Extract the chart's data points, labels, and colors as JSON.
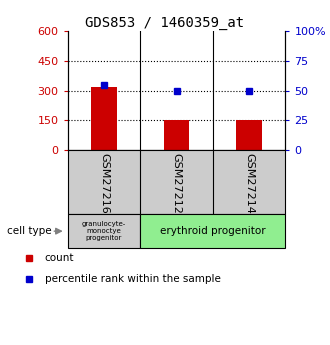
{
  "title": "GDS853 / 1460359_at",
  "categories": [
    "GSM27216",
    "GSM27212",
    "GSM27214"
  ],
  "bar_values": [
    320,
    150,
    153
  ],
  "percentile_values": [
    55,
    50,
    50
  ],
  "bar_color": "#cc0000",
  "dot_color": "#0000cc",
  "ylim_left": [
    0,
    600
  ],
  "ylim_right": [
    0,
    100
  ],
  "yticks_left": [
    0,
    150,
    300,
    450,
    600
  ],
  "yticks_right": [
    0,
    25,
    50,
    75,
    100
  ],
  "ytick_labels_right": [
    "0",
    "25",
    "50",
    "75",
    "100%"
  ],
  "cell_type_granu": "granulocyte-\nmonoctye\nprogenitor",
  "cell_type_erythr": "erythroid progenitor",
  "cell_type_granu_color": "#cccccc",
  "cell_type_erythr_color": "#90ee90",
  "cell_type_label": "cell type",
  "legend_count": "count",
  "legend_percentile": "percentile rank within the sample",
  "title_fontsize": 10,
  "tick_fontsize": 8,
  "bar_width": 0.35
}
